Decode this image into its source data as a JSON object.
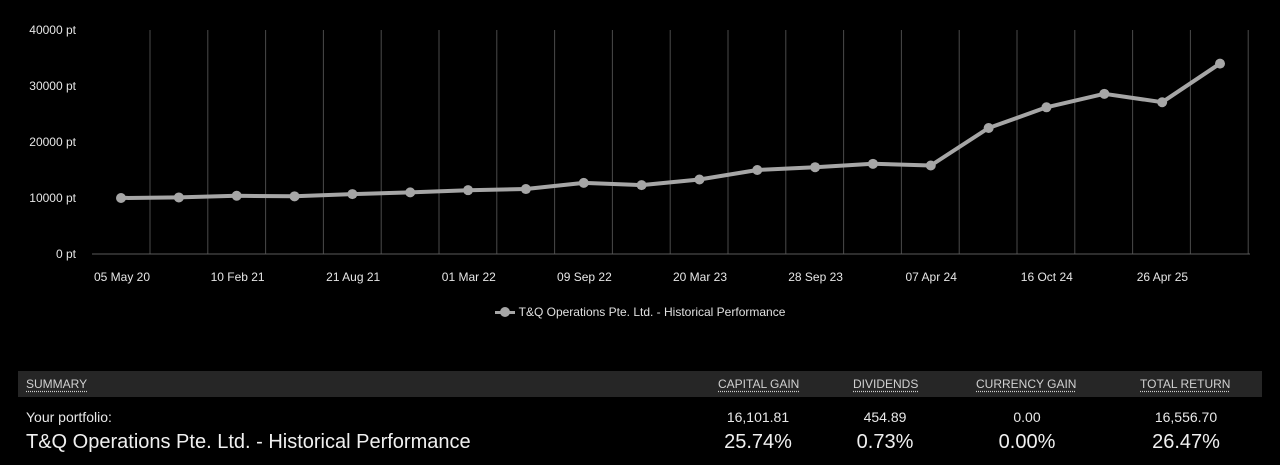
{
  "chart_data": {
    "type": "line",
    "y_ticks": [
      "40000 pt",
      "30000 pt",
      "20000 pt",
      "10000 pt",
      "0 pt"
    ],
    "y_tick_values": [
      40000,
      30000,
      20000,
      10000,
      0
    ],
    "ylim": [
      0,
      40000
    ],
    "x_labels": [
      "05 May 20",
      "10 Feb 21",
      "21 Aug 21",
      "01 Mar 22",
      "09 Sep 22",
      "20 Mar 23",
      "28 Sep 23",
      "07 Apr 24",
      "16 Oct 24",
      "26 Apr 25"
    ],
    "grid": "vertical",
    "legend_position": "bottom-center",
    "series": [
      {
        "name": "T&Q Operations Pte. Ltd. - Historical Performance",
        "color": "#a6a6a6",
        "values": [
          10000,
          10100,
          10400,
          10300,
          10700,
          11000,
          11400,
          11600,
          12700,
          12300,
          13300,
          15000,
          15500,
          16100,
          15800,
          22500,
          26200,
          28600,
          27100,
          34000
        ]
      }
    ]
  },
  "summary": {
    "header": {
      "summary": "SUMMARY",
      "capital_gain": "CAPITAL GAIN",
      "dividends": "DIVIDENDS",
      "currency_gain": "CURRENCY GAIN",
      "total_return": "TOTAL RETURN"
    },
    "portfolio_row": {
      "label": "Your portfolio:",
      "capital_gain": "16,101.81",
      "dividends": "454.89",
      "currency_gain": "0.00",
      "total_return": "16,556.70"
    },
    "performance_row": {
      "label": "T&Q Operations Pte. Ltd. - Historical Performance",
      "capital_gain": "25.74%",
      "dividends": "0.73%",
      "currency_gain": "0.00%",
      "total_return": "26.47%"
    }
  }
}
